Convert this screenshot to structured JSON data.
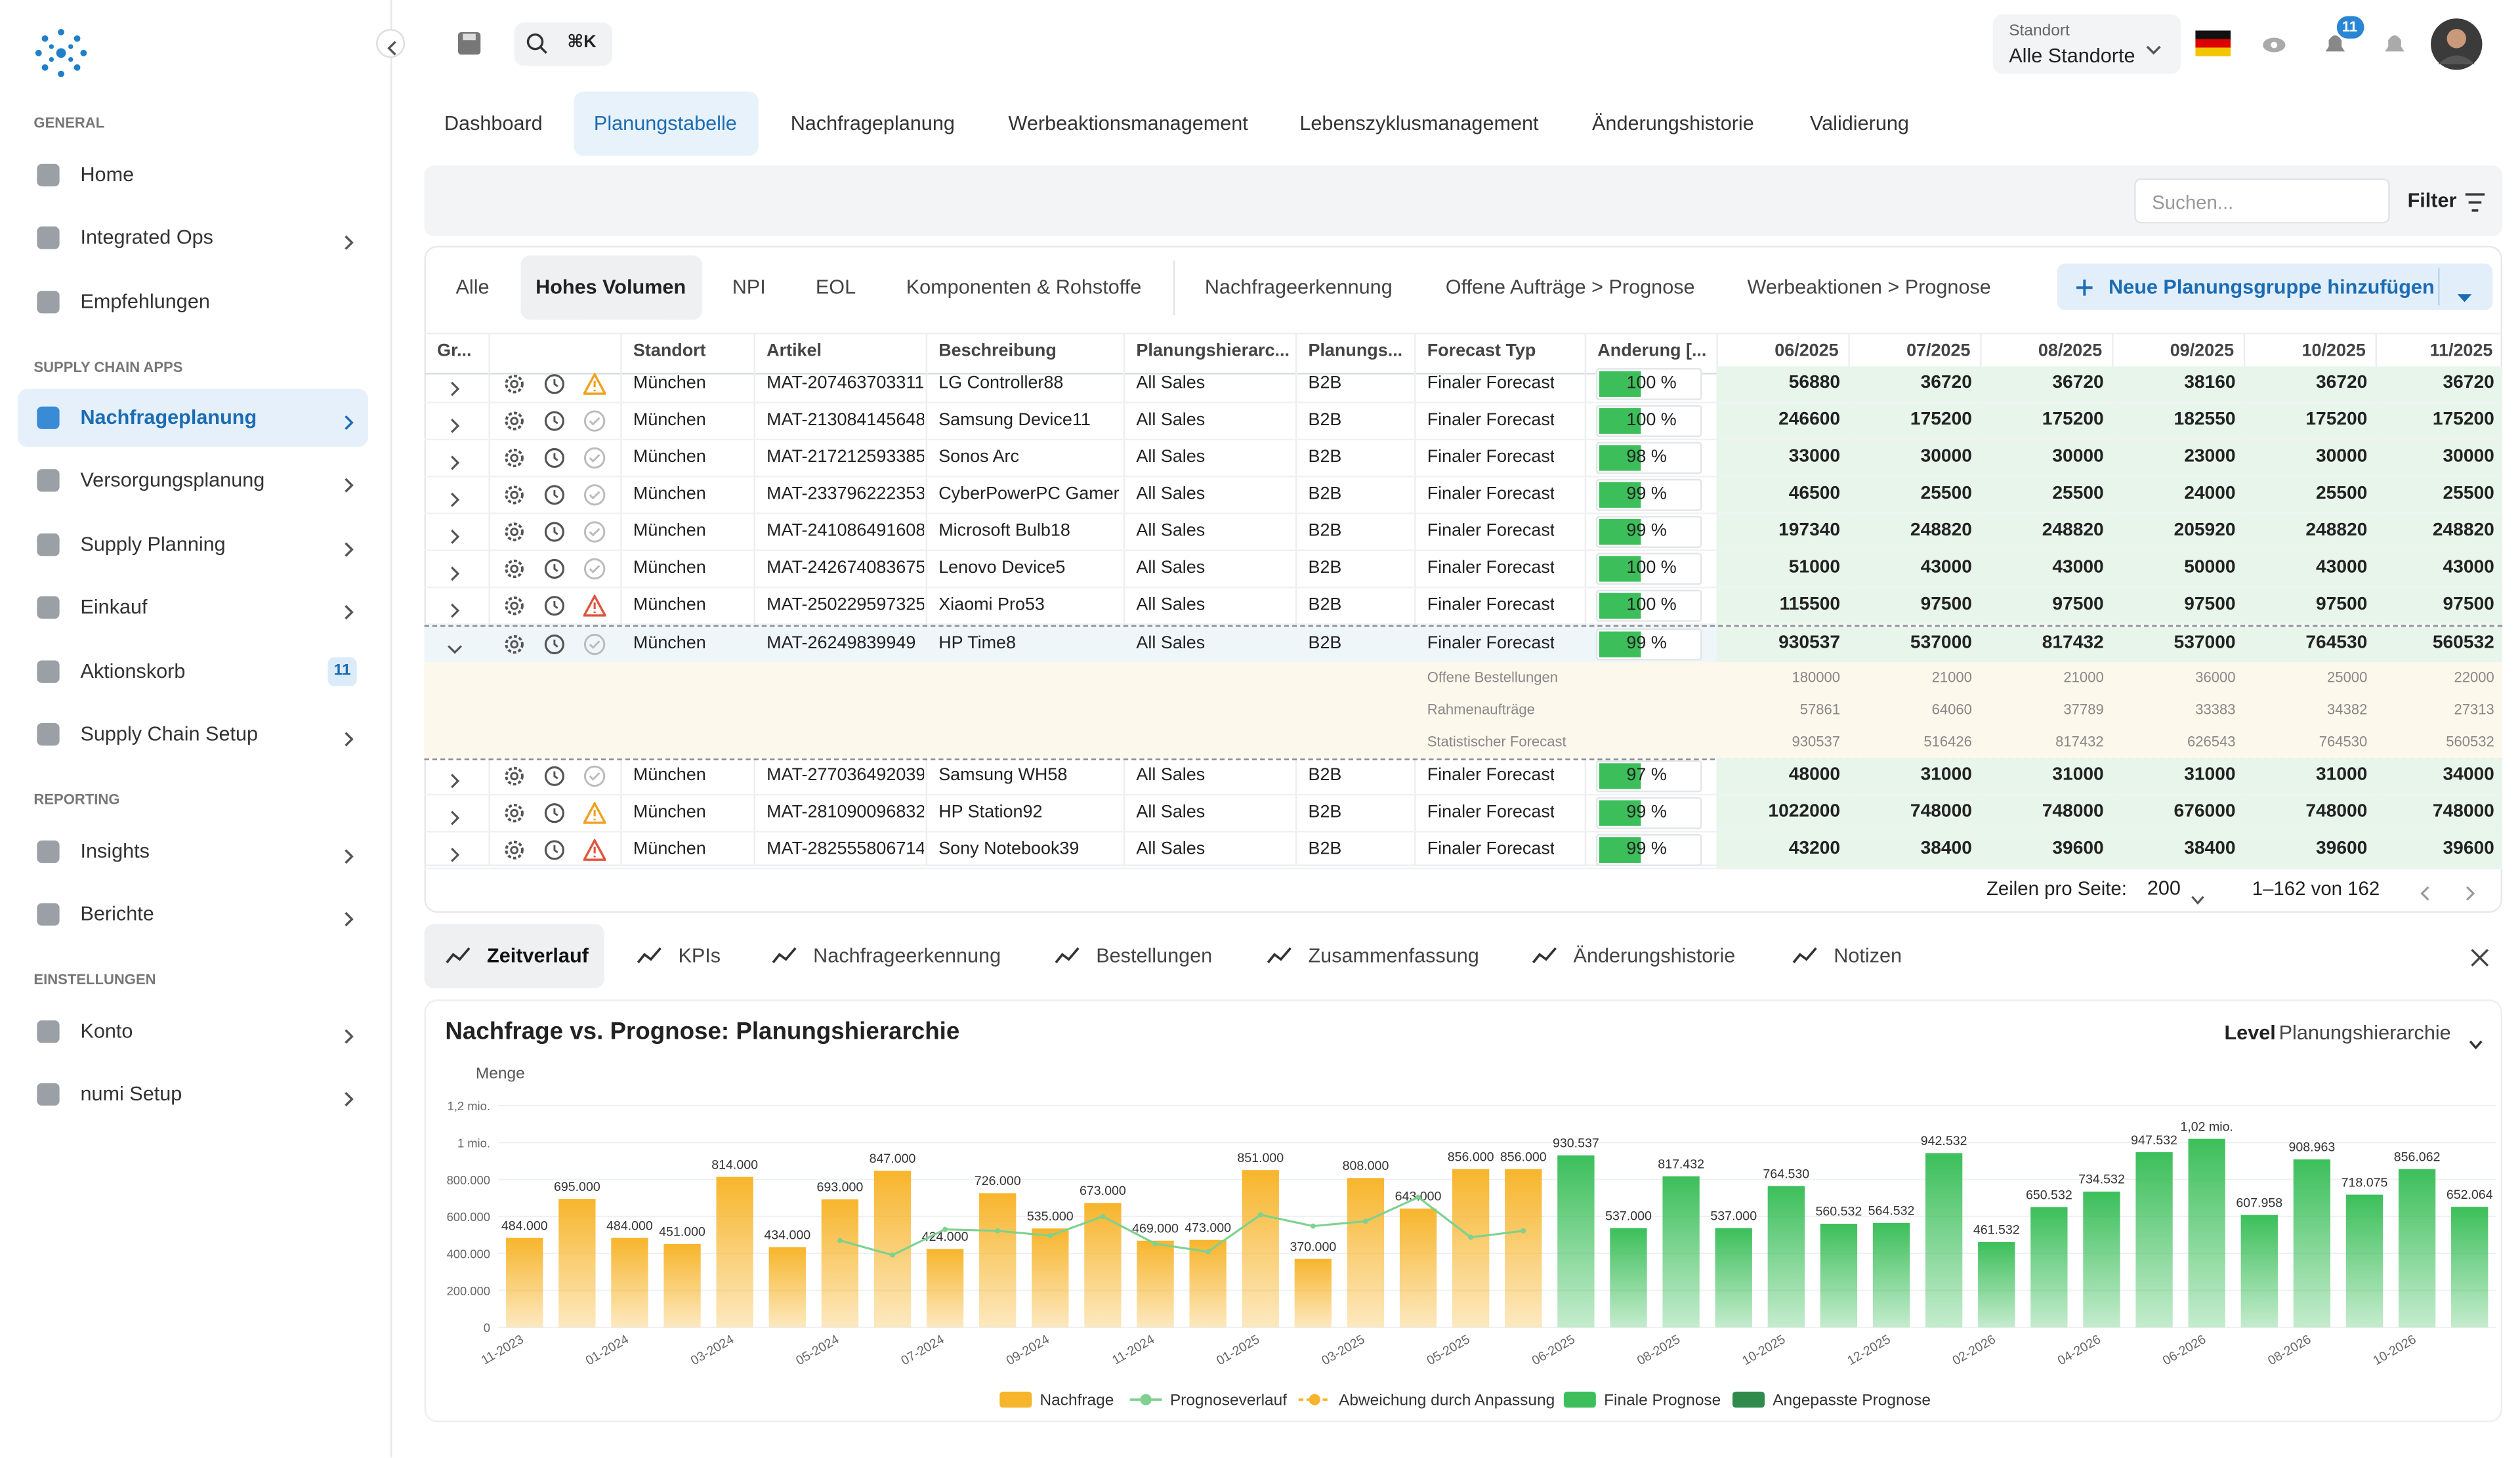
{
  "sidebar": {
    "sections": [
      {
        "title": "GENERAL",
        "items": [
          {
            "label": "Home"
          },
          {
            "label": "Integrated Ops",
            "chevron": true
          },
          {
            "label": "Empfehlungen"
          }
        ]
      },
      {
        "title": "SUPPLY CHAIN APPS",
        "items": [
          {
            "label": "Nachfrageplanung",
            "chevron": true,
            "active": true
          },
          {
            "label": "Versorgungsplanung",
            "chevron": true
          },
          {
            "label": "Supply Planning",
            "chevron": true
          },
          {
            "label": "Einkauf",
            "chevron": true
          },
          {
            "label": "Aktionskorb",
            "badge": 11
          },
          {
            "label": "Supply Chain Setup",
            "chevron": true
          }
        ]
      },
      {
        "title": "REPORTING",
        "items": [
          {
            "label": "Insights",
            "chevron": true
          },
          {
            "label": "Berichte",
            "chevron": true
          }
        ]
      },
      {
        "title": "EINSTELLUNGEN",
        "items": [
          {
            "label": "Konto",
            "chevron": true
          },
          {
            "label": "numi Setup",
            "chevron": true
          }
        ]
      }
    ]
  },
  "topbar": {
    "search_shortcut": "⌘K",
    "location_label": "Standort",
    "location_value": "Alle Standorte",
    "notifications": 11
  },
  "tabs": {
    "items": [
      "Dashboard",
      "Planungstabelle",
      "Nachfrageplanung",
      "Werbeaktionsmanagement",
      "Lebenszyklusmanagement",
      "Änderungshistorie",
      "Validierung"
    ],
    "active": 1
  },
  "search": {
    "placeholder": "Suchen...",
    "filter": "Filter"
  },
  "groups": {
    "items": [
      "Alle",
      "Hohes Volumen",
      "NPI",
      "EOL",
      "Komponenten & Rohstoffe",
      "Nachfrageerkennung",
      "Offene Aufträge > Prognose",
      "Werbeaktionen > Prognose"
    ],
    "active": 1,
    "add_button": "Neue Planungsgruppe hinzufügen"
  },
  "table": {
    "columns": [
      "Gr...",
      "Standort",
      "Artikel",
      "Beschreibung",
      "Planungshierarc...",
      "Planungs...",
      "Forecast Typ",
      "Änderung [...",
      "06/2025",
      "07/2025",
      "08/2025",
      "09/2025",
      "10/2025",
      "11/2025"
    ],
    "rows": [
      {
        "status": "warning",
        "cells": [
          "München",
          "MAT-207463703311",
          "LG Controller88",
          "All Sales",
          "B2B",
          "Finaler Forecast",
          "100 %",
          56880,
          36720,
          36720,
          38160,
          36720,
          36720
        ]
      },
      {
        "status": "ok",
        "cells": [
          "München",
          "MAT-213084145648",
          "Samsung Device11",
          "All Sales",
          "B2B",
          "Finaler Forecast",
          "100 %",
          246600,
          175200,
          175200,
          182550,
          175200,
          175200
        ]
      },
      {
        "status": "ok",
        "cells": [
          "München",
          "MAT-217212593385",
          "Sonos Arc",
          "All Sales",
          "B2B",
          "Finaler Forecast",
          "98 %",
          33000,
          30000,
          30000,
          23000,
          30000,
          30000
        ]
      },
      {
        "status": "ok",
        "cells": [
          "München",
          "MAT-233796222353",
          "CyberPowerPC Gamer Su",
          "All Sales",
          "B2B",
          "Finaler Forecast",
          "99 %",
          46500,
          25500,
          25500,
          24000,
          25500,
          25500
        ]
      },
      {
        "status": "ok",
        "cells": [
          "München",
          "MAT-241086491608",
          "Microsoft Bulb18",
          "All Sales",
          "B2B",
          "Finaler Forecast",
          "99 %",
          197340,
          248820,
          248820,
          205920,
          248820,
          248820
        ]
      },
      {
        "status": "ok",
        "cells": [
          "München",
          "MAT-242674083675",
          "Lenovo Device5",
          "All Sales",
          "B2B",
          "Finaler Forecast",
          "100 %",
          51000,
          43000,
          43000,
          50000,
          43000,
          43000
        ]
      },
      {
        "status": "error",
        "cells": [
          "München",
          "MAT-250229597325",
          "Xiaomi Pro53",
          "All Sales",
          "B2B",
          "Finaler Forecast",
          "100 %",
          115500,
          97500,
          97500,
          97500,
          97500,
          97500
        ]
      },
      {
        "status": "ok",
        "expanded": true,
        "cells": [
          "München",
          "MAT-26249839949",
          "HP Time8",
          "All Sales",
          "B2B",
          "Finaler Forecast",
          "99 %",
          930537,
          537000,
          817432,
          537000,
          764530,
          560532
        ]
      },
      {
        "status": "ok",
        "cells": [
          "München",
          "MAT-277036492039",
          "Samsung WH58",
          "All Sales",
          "B2B",
          "Finaler Forecast",
          "97 %",
          48000,
          31000,
          31000,
          31000,
          31000,
          34000
        ]
      },
      {
        "status": "warning",
        "cells": [
          "München",
          "MAT-281090096832",
          "HP Station92",
          "All Sales",
          "B2B",
          "Finaler Forecast",
          "99 %",
          1022000,
          748000,
          748000,
          676000,
          748000,
          748000
        ]
      },
      {
        "status": "error",
        "cells": [
          "München",
          "MAT-282555806714",
          "Sony Notebook39",
          "All Sales",
          "B2B",
          "Finaler Forecast",
          "99 %",
          43200,
          38400,
          39600,
          38400,
          39600,
          39600
        ]
      }
    ],
    "detail": {
      "after_row": 7,
      "rows": [
        {
          "label": "Offene Bestellungen",
          "values": [
            180000,
            21000,
            21000,
            36000,
            25000,
            22000
          ]
        },
        {
          "label": "Rahmenaufträge",
          "values": [
            57861,
            64060,
            37789,
            33383,
            34382,
            27313
          ]
        },
        {
          "label": "Statistischer Forecast",
          "values": [
            930537,
            516426,
            817432,
            626543,
            764530,
            560532
          ]
        }
      ]
    }
  },
  "pagination": {
    "rows_label": "Zeilen pro Seite:",
    "rows_per_page": 200,
    "range": "1–162 von 162"
  },
  "detail_tabs": {
    "items": [
      "Zeitverlauf",
      "KPIs",
      "Nachfrageerkennung",
      "Bestellungen",
      "Zusammenfassung",
      "Änderungshistorie",
      "Notizen"
    ],
    "active": 0
  },
  "level": {
    "label": "Level",
    "value": "Planungshierarchie"
  },
  "chart_data": {
    "type": "bar",
    "title": "Nachfrage vs. Prognose: Planungshierarchie",
    "y_label": "Menge",
    "categories": [
      "11-2023",
      null,
      "01-2024",
      null,
      "03-2024",
      null,
      "05-2024",
      null,
      "07-2024",
      null,
      "09-2024",
      null,
      "11-2024",
      null,
      "01-2025",
      null,
      "03-2025",
      null,
      "05-2025",
      null,
      "06-2025",
      null,
      "08-2025",
      null,
      "10-2025",
      null,
      "12-2025",
      null,
      "02-2026",
      null,
      "04-2026",
      null,
      "06-2026",
      null,
      "08-2026",
      null,
      "10-2026",
      null
    ],
    "ylim": [
      0,
      1200000
    ],
    "yticks": [
      0,
      {
        "value": 200000,
        "label": "200.000"
      },
      {
        "value": 400000,
        "label": "400.000"
      },
      {
        "value": 600000,
        "label": "600.000"
      },
      {
        "value": 800000,
        "label": "800.000"
      },
      {
        "value": 1000000,
        "label": "1 mio."
      },
      {
        "value": 1200000,
        "label": "1,2 mio."
      }
    ],
    "grid": true,
    "series": [
      {
        "name": "Nachfrage",
        "kind": "bar",
        "color": "#f7b52c",
        "values": [
          484000,
          695000,
          484000,
          451000,
          814000,
          434000,
          693000,
          847000,
          424000,
          726000,
          535000,
          673000,
          469000,
          473000,
          851000,
          370000,
          808000,
          643000,
          856000,
          856000,
          null,
          null,
          null,
          null,
          null,
          null,
          null,
          null,
          null,
          null,
          null,
          null,
          null,
          null,
          null,
          null,
          null,
          null
        ],
        "value_labels": [
          "484.000",
          "695.000",
          "484.000",
          "451.000",
          "814.000",
          "434.000",
          "693.000",
          "847.000",
          "424.000",
          "726.000",
          "535.000",
          "673.000",
          "469.000",
          "473.000",
          "851.000",
          "370.000",
          "808.000",
          "643.000",
          "856.000",
          "856.000",
          null,
          null,
          null,
          null,
          null,
          null,
          null,
          null,
          null,
          null,
          null,
          null,
          null,
          null,
          null,
          null,
          null,
          null
        ]
      },
      {
        "name": "Prognoseverlauf",
        "kind": "line",
        "color": "#7ed18f",
        "values": [
          null,
          null,
          null,
          null,
          null,
          null,
          470000,
          391000,
          530000,
          522000,
          496000,
          600000,
          452000,
          409000,
          609000,
          548000,
          574000,
          704000,
          487000,
          522000,
          null,
          null,
          null,
          null,
          null,
          null,
          null,
          null,
          null,
          null,
          null,
          null,
          null,
          null,
          null,
          null,
          null,
          null
        ]
      },
      {
        "name": "Abweichung durch Anpassung",
        "kind": "line",
        "dashed": true,
        "color": "#f7b52c",
        "values": [
          null,
          null,
          null,
          null,
          null,
          null,
          null,
          null,
          null,
          null,
          null,
          null,
          null,
          null,
          null,
          null,
          null,
          null,
          null,
          null,
          null,
          null,
          null,
          null,
          null,
          null,
          null,
          null,
          null,
          null,
          null,
          null,
          null,
          null,
          null,
          null,
          null,
          null
        ]
      },
      {
        "name": "Finale Prognose",
        "kind": "bar",
        "color": "#3cbf5a",
        "values": [
          null,
          null,
          null,
          null,
          null,
          null,
          null,
          null,
          null,
          null,
          null,
          null,
          null,
          null,
          null,
          null,
          null,
          null,
          null,
          null,
          930537,
          537000,
          817432,
          537000,
          764530,
          560532,
          564532,
          942532,
          461532,
          650532,
          734532,
          947532,
          1020000,
          607958,
          908963,
          718075,
          856062,
          652064
        ],
        "value_labels": [
          null,
          null,
          null,
          null,
          null,
          null,
          null,
          null,
          null,
          null,
          null,
          null,
          null,
          null,
          null,
          null,
          null,
          null,
          null,
          null,
          "930.537",
          "537.000",
          "817.432",
          "537.000",
          "764.530",
          "560.532",
          "564.532",
          "942.532",
          "461.532",
          "650.532",
          "734.532",
          "947.532",
          "1,02 mio.",
          "607.958",
          "908.963",
          "718.075",
          "856.062",
          "652.064"
        ]
      },
      {
        "name": "Angepasste Prognose",
        "kind": "bar",
        "color": "#2f8a4c",
        "values": [
          null,
          null,
          null,
          null,
          null,
          null,
          null,
          null,
          null,
          null,
          null,
          null,
          null,
          null,
          null,
          null,
          null,
          null,
          null,
          null,
          null,
          null,
          null,
          null,
          null,
          null,
          null,
          null,
          null,
          null,
          null,
          null,
          null,
          null,
          null,
          null,
          null,
          null
        ]
      }
    ]
  }
}
